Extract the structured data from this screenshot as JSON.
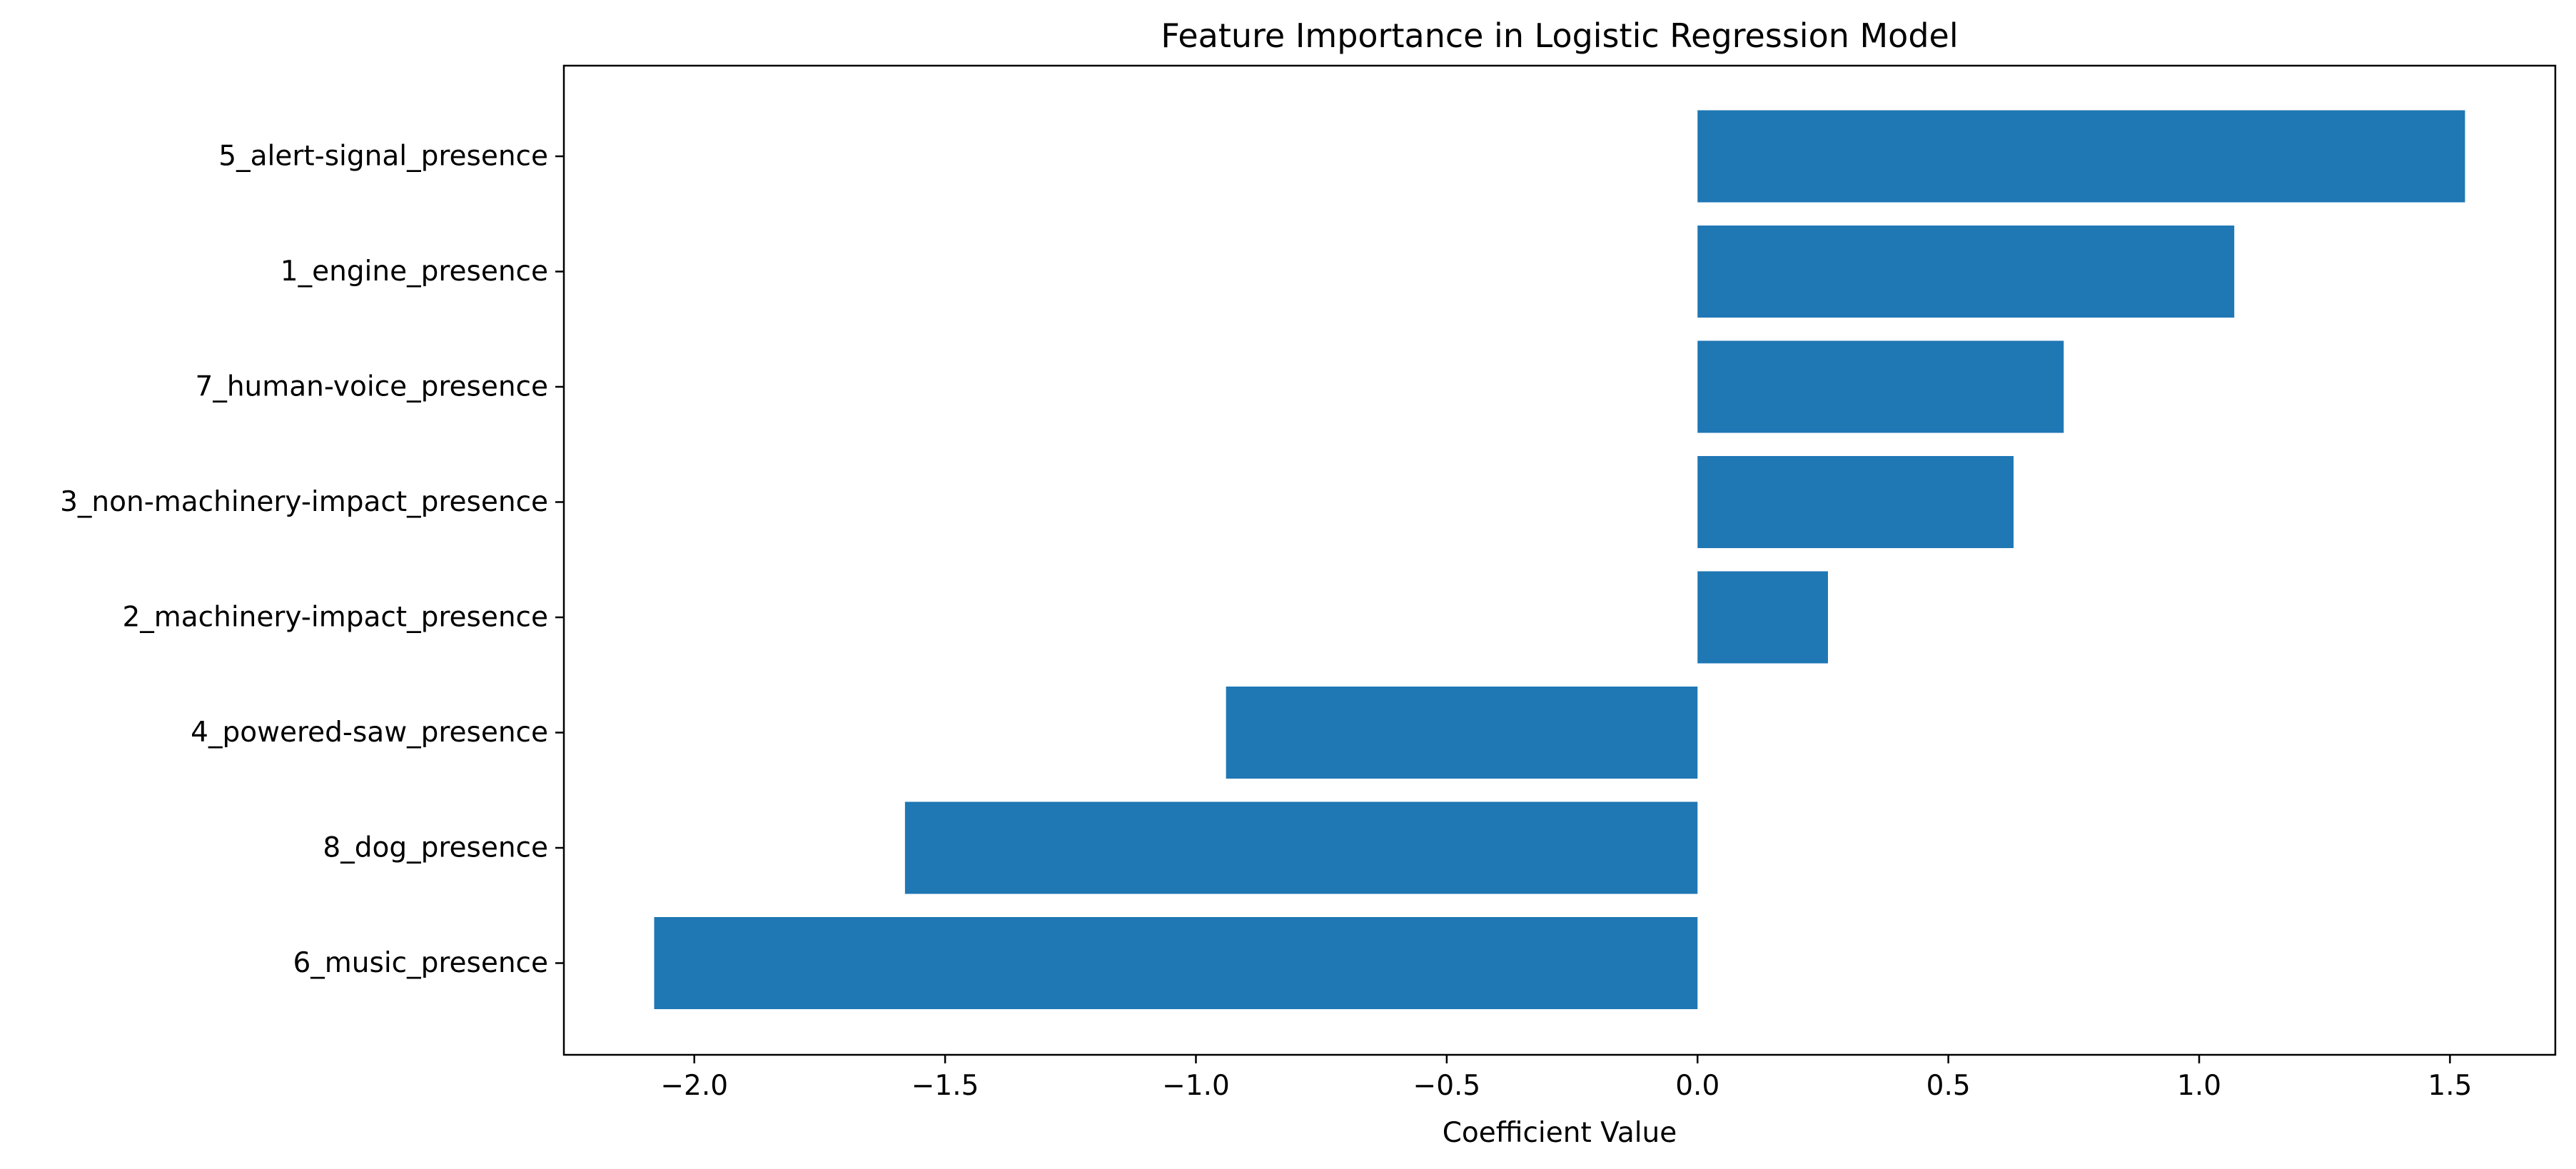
{
  "chart_data": {
    "type": "bar",
    "orientation": "horizontal",
    "title": "Feature Importance in Logistic Regression Model",
    "xlabel": "Coefficient Value",
    "ylabel": "",
    "categories": [
      "5_alert-signal_presence",
      "1_engine_presence",
      "7_human-voice_presence",
      "3_non-machinery-impact_presence",
      "2_machinery-impact_presence",
      "4_powered-saw_presence",
      "8_dog_presence",
      "6_music_presence"
    ],
    "values": [
      1.53,
      1.07,
      0.73,
      0.63,
      0.26,
      -0.94,
      -1.58,
      -2.08
    ],
    "xlim": [
      -2.26,
      1.71
    ],
    "xticks": [
      -2.0,
      -1.5,
      -1.0,
      -0.5,
      0.0,
      0.5,
      1.0,
      1.5
    ],
    "xtick_labels": [
      "−2.0",
      "−1.5",
      "−1.0",
      "−0.5",
      "0.0",
      "0.5",
      "1.0",
      "1.5"
    ],
    "grid": false,
    "bar_color": "#1f77b4"
  }
}
